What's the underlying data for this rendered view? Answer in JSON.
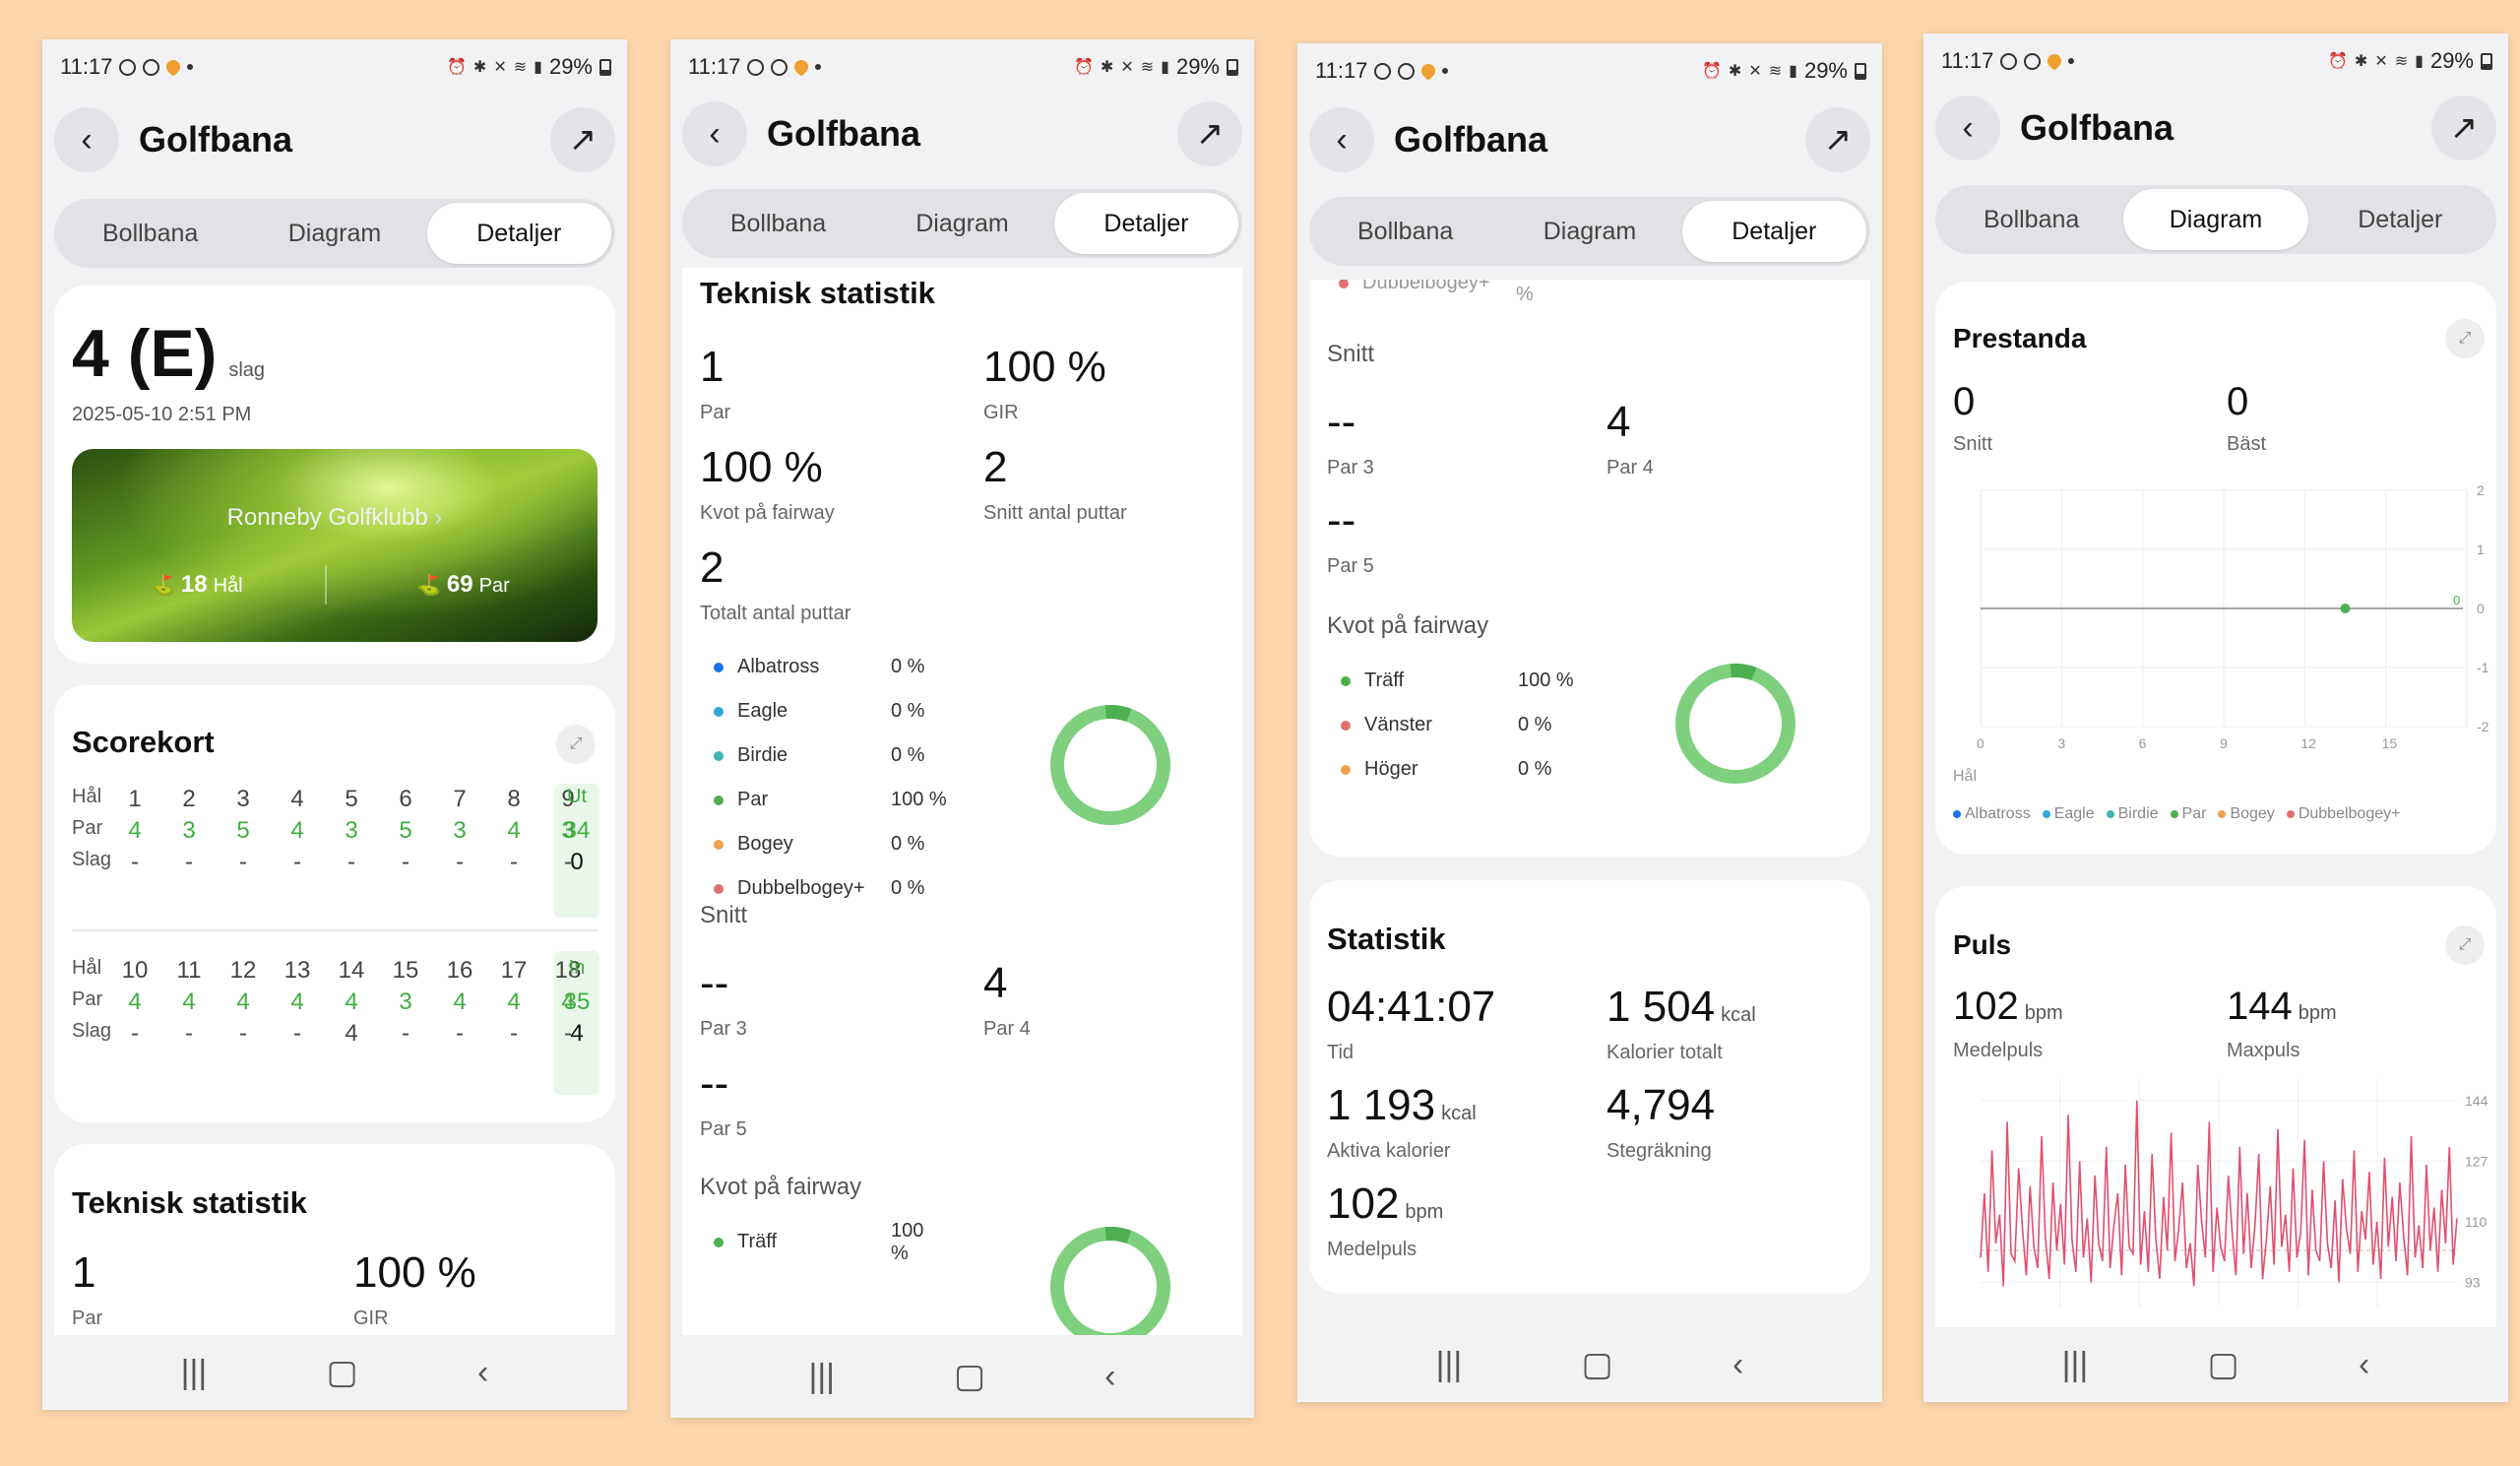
{
  "status": {
    "time": "11:17",
    "battery": "29%"
  },
  "header": {
    "title": "Golfbana"
  },
  "tabs": [
    "Bollbana",
    "Diagram",
    "Detaljer"
  ],
  "summary": {
    "score": "4 (E)",
    "score_unit": "slag",
    "datetime": "2025-05-10 2:51 PM",
    "course": "Ronneby Golfklubb",
    "holes": "18",
    "holes_unit": "Hål",
    "par": "69",
    "par_unit": "Par"
  },
  "scorecard": {
    "title": "Scorekort",
    "row_labels": {
      "hole": "Hål",
      "par": "Par",
      "strokes": "Slag"
    },
    "front": {
      "holes": [
        "1",
        "2",
        "3",
        "4",
        "5",
        "6",
        "7",
        "8",
        "9"
      ],
      "total_label": "Ut",
      "par": [
        "4",
        "3",
        "5",
        "4",
        "3",
        "5",
        "3",
        "4",
        "3"
      ],
      "par_total": "34",
      "strokes": [
        "-",
        "-",
        "-",
        "-",
        "-",
        "-",
        "-",
        "-",
        "-"
      ],
      "strokes_total": "0"
    },
    "back": {
      "holes": [
        "10",
        "11",
        "12",
        "13",
        "14",
        "15",
        "16",
        "17",
        "18"
      ],
      "total_label": "In",
      "par": [
        "4",
        "4",
        "4",
        "4",
        "4",
        "3",
        "4",
        "4",
        "4"
      ],
      "par_total": "35",
      "strokes": [
        "-",
        "-",
        "-",
        "-",
        "4",
        "-",
        "-",
        "-",
        "-"
      ],
      "strokes_total": "4"
    }
  },
  "tech": {
    "title": "Teknisk statistik",
    "par_value": "1",
    "par_label": "Par",
    "gir_value": "100 %",
    "gir_label": "GIR",
    "fairway_value": "100 %",
    "fairway_label": "Kvot på fairway",
    "avg_putts_value": "2",
    "avg_putts_label": "Snitt antal puttar",
    "total_putts_value": "2",
    "total_putts_label": "Totalt antal puttar",
    "score_dist": [
      {
        "name": "Albatross",
        "pct": "0 %",
        "color": "#1a73e8"
      },
      {
        "name": "Eagle",
        "pct": "0 %",
        "color": "#2ea8d8"
      },
      {
        "name": "Birdie",
        "pct": "0 %",
        "color": "#3fb5b0"
      },
      {
        "name": "Par",
        "pct": "100 %",
        "color": "#4caf50"
      },
      {
        "name": "Bogey",
        "pct": "0 %",
        "color": "#f0a050"
      },
      {
        "name": "Dubbelbogey+",
        "pct": "0 %",
        "color": "#e07070"
      }
    ],
    "avg_title": "Snitt",
    "par3_value": "--",
    "par3_label": "Par 3",
    "par4_value": "4",
    "par4_label": "Par 4",
    "par5_value": "--",
    "par5_label": "Par 5",
    "fairway_title": "Kvot på fairway",
    "fairway_dist": [
      {
        "name": "Träff",
        "pct": "100 %",
        "color": "#4caf50"
      },
      {
        "name": "Vänster",
        "pct": "0 %",
        "color": "#e07070"
      },
      {
        "name": "Höger",
        "pct": "0 %",
        "color": "#f0a050"
      }
    ],
    "cut_label": "Dubbelbogey+",
    "cut_pct": "0 %"
  },
  "statistik": {
    "title": "Statistik",
    "time_value": "04:41:07",
    "time_label": "Tid",
    "kcal_total_value": "1 504",
    "kcal_unit": "kcal",
    "kcal_total_label": "Kalorier totalt",
    "active_kcal_value": "1 193",
    "active_kcal_label": "Aktiva kalorier",
    "steps_value": "4,794",
    "steps_label": "Stegräkning",
    "avg_hr_value": "102",
    "bpm_unit": "bpm",
    "avg_hr_label": "Medelpuls"
  },
  "performance": {
    "title": "Prestanda",
    "avg_value": "0",
    "avg_label": "Snitt",
    "best_value": "0",
    "best_label": "Bäst",
    "x_title": "Hål",
    "legend": [
      "Albatross",
      "Eagle",
      "Birdie",
      "Par",
      "Bogey",
      "Dubbelbogey+"
    ]
  },
  "pulse": {
    "title": "Puls",
    "avg_value": "102",
    "avg_label": "Medelpuls",
    "max_value": "144",
    "max_label": "Maxpuls",
    "unit": "bpm"
  },
  "chart_data": [
    {
      "type": "scatter",
      "title": "Prestanda",
      "xlabel": "Hål",
      "x_ticks": [
        "0",
        "3",
        "6",
        "9",
        "12",
        "15"
      ],
      "y_ticks": [
        "2",
        "1",
        "0",
        "-1",
        "-2"
      ],
      "xlim": [
        0,
        18
      ],
      "ylim": [
        -2,
        2
      ],
      "series": [
        {
          "name": "Par",
          "x": [
            13.5
          ],
          "y": [
            0
          ],
          "color": "#4caf50"
        }
      ],
      "reference_line": {
        "y": 0,
        "label": "0"
      },
      "legend": [
        "Albatross",
        "Eagle",
        "Birdie",
        "Par",
        "Bogey",
        "Dubbelbogey+"
      ]
    },
    {
      "type": "line",
      "title": "Puls",
      "y_ticks": [
        "144",
        "127",
        "110",
        "93"
      ],
      "ylim": [
        86,
        150
      ],
      "reference_line": {
        "y": 102
      },
      "series": [
        {
          "color": "#e0506e",
          "values": [
            100,
            118,
            96,
            130,
            104,
            112,
            92,
            138,
            101,
            99,
            125,
            108,
            95,
            120,
            103,
            97,
            134,
            106,
            94,
            121,
            102,
            115,
            98,
            140,
            105,
            96,
            127,
            100,
            111,
            93,
            123,
            104,
            99,
            131,
            97,
            109,
            118,
            95,
            126,
            103,
            101,
            144,
            98,
            113,
            96,
            129,
            105,
            94,
            117,
            102,
            135,
            99,
            108,
            121,
            97,
            104,
            92,
            126,
            110,
            100,
            138,
            96,
            114,
            103,
            99,
            123,
            107,
            95,
            131,
            101,
            118,
            97,
            109,
            129,
            94,
            105,
            120,
            98,
            136,
            103,
            112,
            96,
            125,
            100,
            107,
            133,
            95,
            119,
            102,
            99,
            127,
            104,
            97,
            116,
            93,
            122,
            108,
            101,
            130,
            96,
            113,
            105,
            124,
            98,
            110,
            94,
            128,
            103,
            117,
            99,
            121,
            106,
            95,
            134,
            100,
            109,
            97,
            126,
            102,
            114,
            96,
            119,
            104,
            131,
            98,
            111
          ]
        }
      ]
    }
  ]
}
